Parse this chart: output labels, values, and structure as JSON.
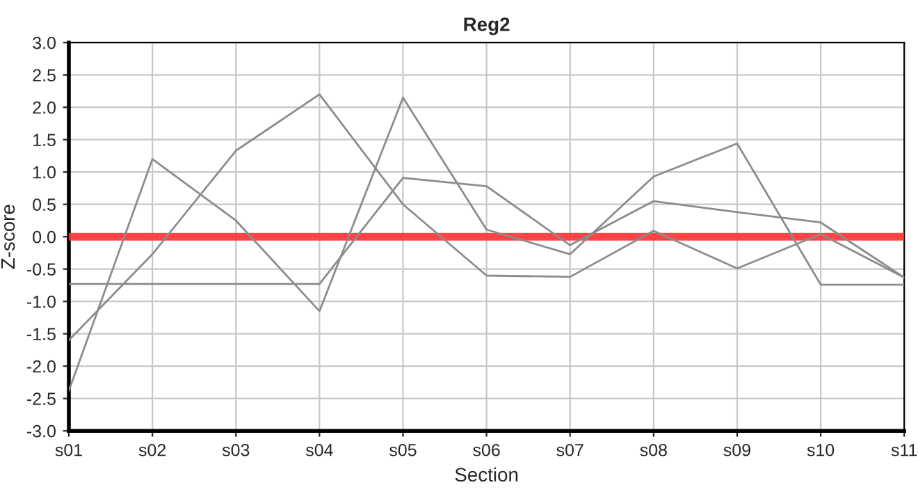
{
  "chart_data": {
    "type": "line",
    "title": "Reg2",
    "xlabel": "Section",
    "ylabel": "Z-score",
    "categories": [
      "s01",
      "s02",
      "s03",
      "s04",
      "s05",
      "s06",
      "s07",
      "s08",
      "s09",
      "s10",
      "s11"
    ],
    "series": [
      {
        "color": "#8c8c8c",
        "values": [
          -2.38,
          1.2,
          0.25,
          -1.15,
          2.15,
          0.11,
          -0.27,
          0.93,
          1.44,
          -0.74,
          -0.74
        ]
      },
      {
        "color": "#8c8c8c",
        "values": [
          -1.6,
          -0.27,
          1.33,
          2.2,
          0.5,
          -0.6,
          -0.62,
          0.09,
          -0.49,
          0.04,
          -0.63
        ]
      },
      {
        "color": "#8c8c8c",
        "values": [
          -0.73,
          -0.73,
          -0.73,
          -0.73,
          0.91,
          0.78,
          -0.13,
          0.55,
          0.38,
          0.22,
          -0.63
        ]
      }
    ],
    "ylim": [
      -3.0,
      3.0
    ],
    "yticks": [
      {
        "value": -3,
        "label": "-3.0"
      },
      {
        "value": -2.5,
        "label": "-2.5"
      },
      {
        "value": -2,
        "label": "-2.0"
      },
      {
        "value": -1.5,
        "label": "-1.5"
      },
      {
        "value": -1,
        "label": "-1.0"
      },
      {
        "value": -0.5,
        "label": "-0.5"
      },
      {
        "value": 0,
        "label": "0.0"
      },
      {
        "value": 0.5,
        "label": "0.5"
      },
      {
        "value": 1,
        "label": "1.0"
      },
      {
        "value": 1.5,
        "label": "1.5"
      },
      {
        "value": 2,
        "label": "2.0"
      },
      {
        "value": 2.5,
        "label": "2.5"
      },
      {
        "value": 3,
        "label": "3.0"
      }
    ],
    "ref_lines": [
      {
        "axis": "y",
        "value": 0,
        "color": "#ff3333"
      }
    ],
    "grid": true
  }
}
